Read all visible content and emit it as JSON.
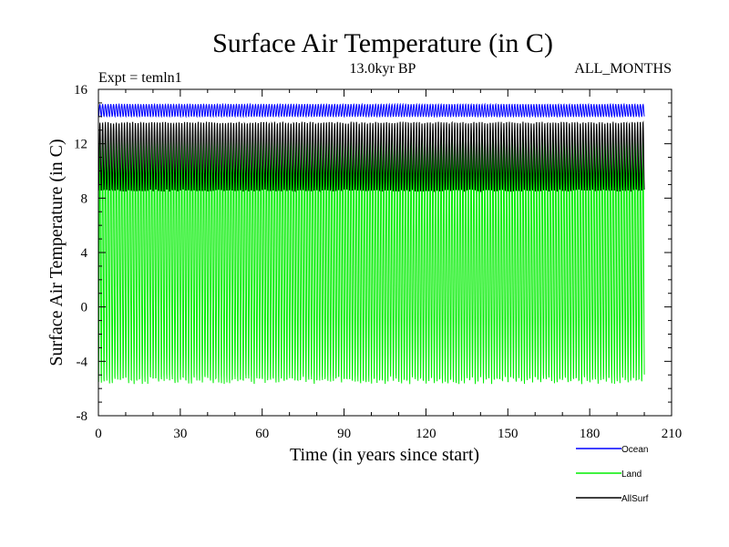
{
  "chart_data": {
    "type": "line",
    "title": "Surface Air Temperature (in C)",
    "subtitle_left": "Expt = temln1",
    "subtitle_center": "13.0kyr BP",
    "subtitle_right": "ALL_MONTHS",
    "xlabel": "Time (in years since start)",
    "ylabel": "Surface Air Temperature (in C)",
    "xlim": [
      0,
      210
    ],
    "ylim": [
      -8,
      16
    ],
    "xticks": [
      0,
      30,
      60,
      90,
      120,
      150,
      180,
      210
    ],
    "yticks": [
      -8,
      -4,
      0,
      4,
      8,
      12,
      16
    ],
    "xtick_labels": [
      "0",
      "30",
      "60",
      "90",
      "120",
      "150",
      "180",
      "210"
    ],
    "ytick_labels": [
      "-8",
      "-4",
      "0",
      "4",
      "8",
      "12",
      "16"
    ],
    "legend_position": "bottom-right",
    "series": [
      {
        "name": "Ocean",
        "color": "#0000ff",
        "period_years": 1,
        "data_range_years": [
          0,
          200
        ],
        "annual_max": 14.9,
        "annual_min": 14.0
      },
      {
        "name": "Land",
        "color": "#00ee00",
        "period_years": 1,
        "data_range_years": [
          0,
          200
        ],
        "annual_max": 12.8,
        "annual_min": -5.6
      },
      {
        "name": "AllSurf",
        "color": "#000000",
        "period_years": 1,
        "data_range_years": [
          0,
          200
        ],
        "annual_max": 13.6,
        "annual_min": 8.5
      }
    ]
  }
}
